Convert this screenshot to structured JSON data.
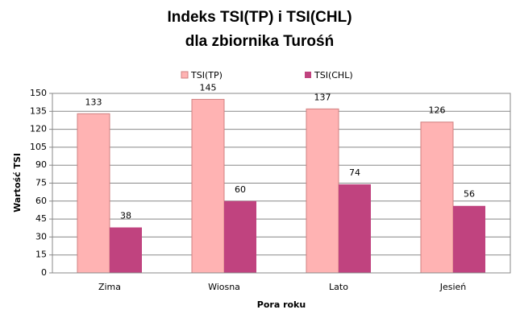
{
  "chart_data": {
    "type": "bar",
    "title": [
      "Indeks TSI(TP) i TSI(CHL)",
      "dla zbiornika Turośń"
    ],
    "xlabel": "Pora roku",
    "ylabel": "Wartość TSI",
    "categories": [
      "Zima",
      "Wiosna",
      "Lato",
      "Jesień"
    ],
    "series": [
      {
        "name": "TSI(TP)",
        "color": "#ffb3b3",
        "values": [
          133,
          145,
          137,
          126
        ]
      },
      {
        "name": "TSI(CHL)",
        "color": "#c0437f",
        "values": [
          38,
          60,
          74,
          56
        ]
      }
    ],
    "ylim": [
      0,
      150
    ],
    "yticks": [
      0,
      15,
      30,
      45,
      60,
      75,
      90,
      105,
      120,
      135,
      150
    ],
    "grid": true,
    "legend": "top"
  }
}
